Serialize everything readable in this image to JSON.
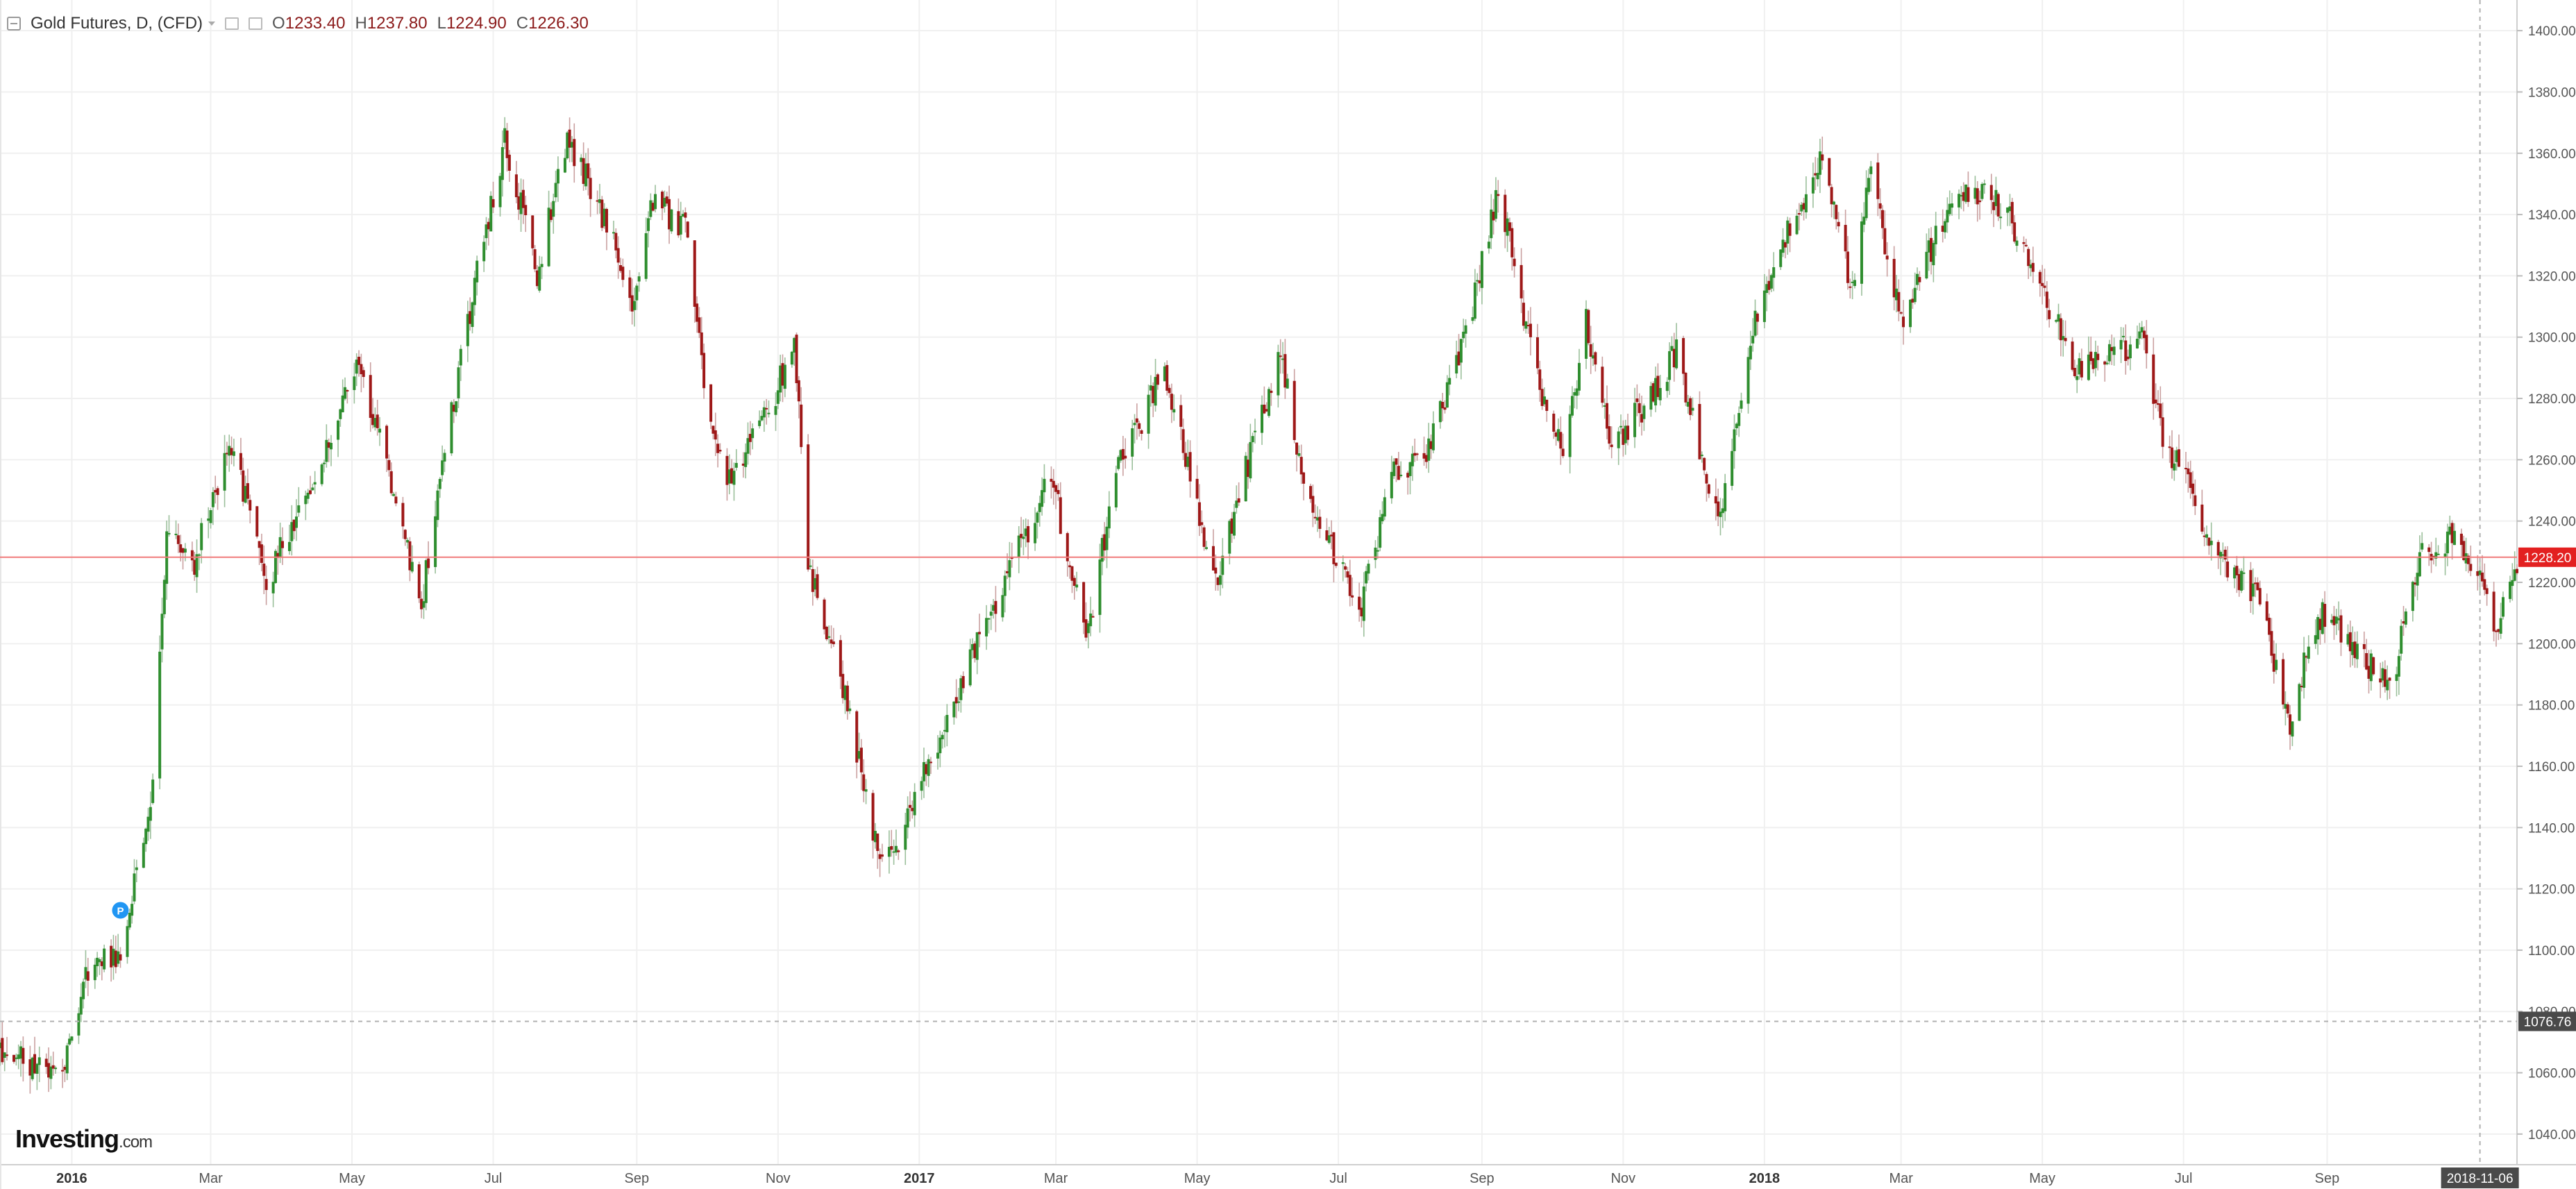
{
  "header": {
    "symbol_label": "Gold Futures, D, (CFD)",
    "ohlc": [
      {
        "k": "O",
        "v": "1233.40"
      },
      {
        "k": "H",
        "v": "1237.80"
      },
      {
        "k": "L",
        "v": "1224.90"
      },
      {
        "k": "C",
        "v": "1226.30"
      }
    ]
  },
  "logo": {
    "main": "Investing",
    "suffix": ".com"
  },
  "colors": {
    "up": "#2f8e2f",
    "down": "#9e1818",
    "grid": "#f0f0f0",
    "axis_text": "#555555",
    "price_line": "#f07a7a",
    "price_badge": "#e32020",
    "crosshair": "#b0b0b0",
    "crosshair_badge": "#4a4a4a",
    "marker": "#2196f3"
  },
  "chart_data": {
    "type": "candlestick",
    "title": "",
    "xlabel": "",
    "ylabel": "",
    "grid": true,
    "ylim": [
      1030,
      1410
    ],
    "xlim": [
      "2015-12-01",
      "2018-11-22"
    ],
    "y_ticks": [
      "1040.00",
      "1060.00",
      "1080.00",
      "1100.00",
      "1120.00",
      "1140.00",
      "1160.00",
      "1180.00",
      "1200.00",
      "1220.00",
      "1240.00",
      "1260.00",
      "1280.00",
      "1300.00",
      "1320.00",
      "1340.00",
      "1360.00",
      "1380.00",
      "1400.00"
    ],
    "x_ticks": [
      {
        "label": "2016",
        "date": "2016-01-01",
        "bold": true
      },
      {
        "label": "Mar",
        "date": "2016-03-01"
      },
      {
        "label": "May",
        "date": "2016-05-01"
      },
      {
        "label": "Jul",
        "date": "2016-07-01"
      },
      {
        "label": "Sep",
        "date": "2016-09-01"
      },
      {
        "label": "Nov",
        "date": "2016-11-01"
      },
      {
        "label": "2017",
        "date": "2017-01-01",
        "bold": true
      },
      {
        "label": "Mar",
        "date": "2017-03-01"
      },
      {
        "label": "May",
        "date": "2017-05-01"
      },
      {
        "label": "Jul",
        "date": "2017-07-01"
      },
      {
        "label": "Sep",
        "date": "2017-09-01"
      },
      {
        "label": "Nov",
        "date": "2017-11-01"
      },
      {
        "label": "2018",
        "date": "2018-01-01",
        "bold": true
      },
      {
        "label": "Mar",
        "date": "2018-03-01"
      },
      {
        "label": "May",
        "date": "2018-05-01"
      },
      {
        "label": "Jul",
        "date": "2018-07-01"
      },
      {
        "label": "Sep",
        "date": "2018-09-01"
      }
    ],
    "price_line": {
      "value": 1228.2,
      "label": "1228.20"
    },
    "crosshair": {
      "price": 1076.76,
      "price_label": "1076.76",
      "date": "2018-11-06",
      "date_label": "2018-11-06"
    },
    "marker": {
      "date": "2016-01-22",
      "price": 1113,
      "label": "P"
    },
    "price_path": [
      [
        "2015-12-01",
        1068
      ],
      [
        "2015-12-15",
        1062
      ],
      [
        "2015-12-28",
        1062
      ],
      [
        "2016-01-08",
        1095
      ],
      [
        "2016-01-22",
        1098
      ],
      [
        "2016-02-05",
        1155
      ],
      [
        "2016-02-11",
        1235
      ],
      [
        "2016-02-22",
        1225
      ],
      [
        "2016-03-10",
        1265
      ],
      [
        "2016-03-25",
        1220
      ],
      [
        "2016-04-12",
        1250
      ],
      [
        "2016-05-02",
        1290
      ],
      [
        "2016-05-13",
        1270
      ],
      [
        "2016-05-31",
        1212
      ],
      [
        "2016-06-08",
        1255
      ],
      [
        "2016-06-24",
        1320
      ],
      [
        "2016-07-06",
        1365
      ],
      [
        "2016-07-20",
        1320
      ],
      [
        "2016-08-02",
        1365
      ],
      [
        "2016-08-15",
        1345
      ],
      [
        "2016-08-31",
        1310
      ],
      [
        "2016-09-08",
        1345
      ],
      [
        "2016-09-22",
        1335
      ],
      [
        "2016-10-04",
        1265
      ],
      [
        "2016-10-10",
        1255
      ],
      [
        "2016-10-28",
        1275
      ],
      [
        "2016-11-08",
        1300
      ],
      [
        "2016-11-14",
        1225
      ],
      [
        "2016-11-28",
        1190
      ],
      [
        "2016-12-15",
        1130
      ],
      [
        "2016-12-20",
        1130
      ],
      [
        "2017-01-04",
        1160
      ],
      [
        "2017-02-01",
        1210
      ],
      [
        "2017-02-27",
        1255
      ],
      [
        "2017-03-14",
        1200
      ],
      [
        "2017-03-27",
        1255
      ],
      [
        "2017-04-17",
        1290
      ],
      [
        "2017-05-09",
        1220
      ],
      [
        "2017-05-25",
        1265
      ],
      [
        "2017-06-06",
        1295
      ],
      [
        "2017-06-15",
        1255
      ],
      [
        "2017-07-10",
        1210
      ],
      [
        "2017-07-25",
        1255
      ],
      [
        "2017-08-08",
        1260
      ],
      [
        "2017-08-28",
        1310
      ],
      [
        "2017-09-08",
        1350
      ],
      [
        "2017-09-22",
        1295
      ],
      [
        "2017-10-06",
        1260
      ],
      [
        "2017-10-16",
        1305
      ],
      [
        "2017-10-27",
        1265
      ],
      [
        "2017-11-13",
        1280
      ],
      [
        "2017-11-24",
        1295
      ],
      [
        "2017-12-12",
        1240
      ],
      [
        "2017-12-29",
        1310
      ],
      [
        "2018-01-12",
        1335
      ],
      [
        "2018-01-25",
        1360
      ],
      [
        "2018-02-08",
        1315
      ],
      [
        "2018-02-15",
        1355
      ],
      [
        "2018-03-01",
        1305
      ],
      [
        "2018-03-26",
        1350
      ],
      [
        "2018-04-11",
        1345
      ],
      [
        "2018-04-20",
        1335
      ],
      [
        "2018-05-15",
        1290
      ],
      [
        "2018-05-22",
        1290
      ],
      [
        "2018-06-14",
        1300
      ],
      [
        "2018-06-21",
        1270
      ],
      [
        "2018-07-19",
        1225
      ],
      [
        "2018-08-02",
        1215
      ],
      [
        "2018-08-16",
        1175
      ],
      [
        "2018-08-28",
        1210
      ],
      [
        "2018-09-12",
        1200
      ],
      [
        "2018-09-28",
        1185
      ],
      [
        "2018-10-11",
        1228
      ],
      [
        "2018-10-26",
        1235
      ],
      [
        "2018-11-01",
        1230
      ],
      [
        "2018-11-13",
        1205
      ],
      [
        "2018-11-22",
        1226
      ]
    ]
  }
}
